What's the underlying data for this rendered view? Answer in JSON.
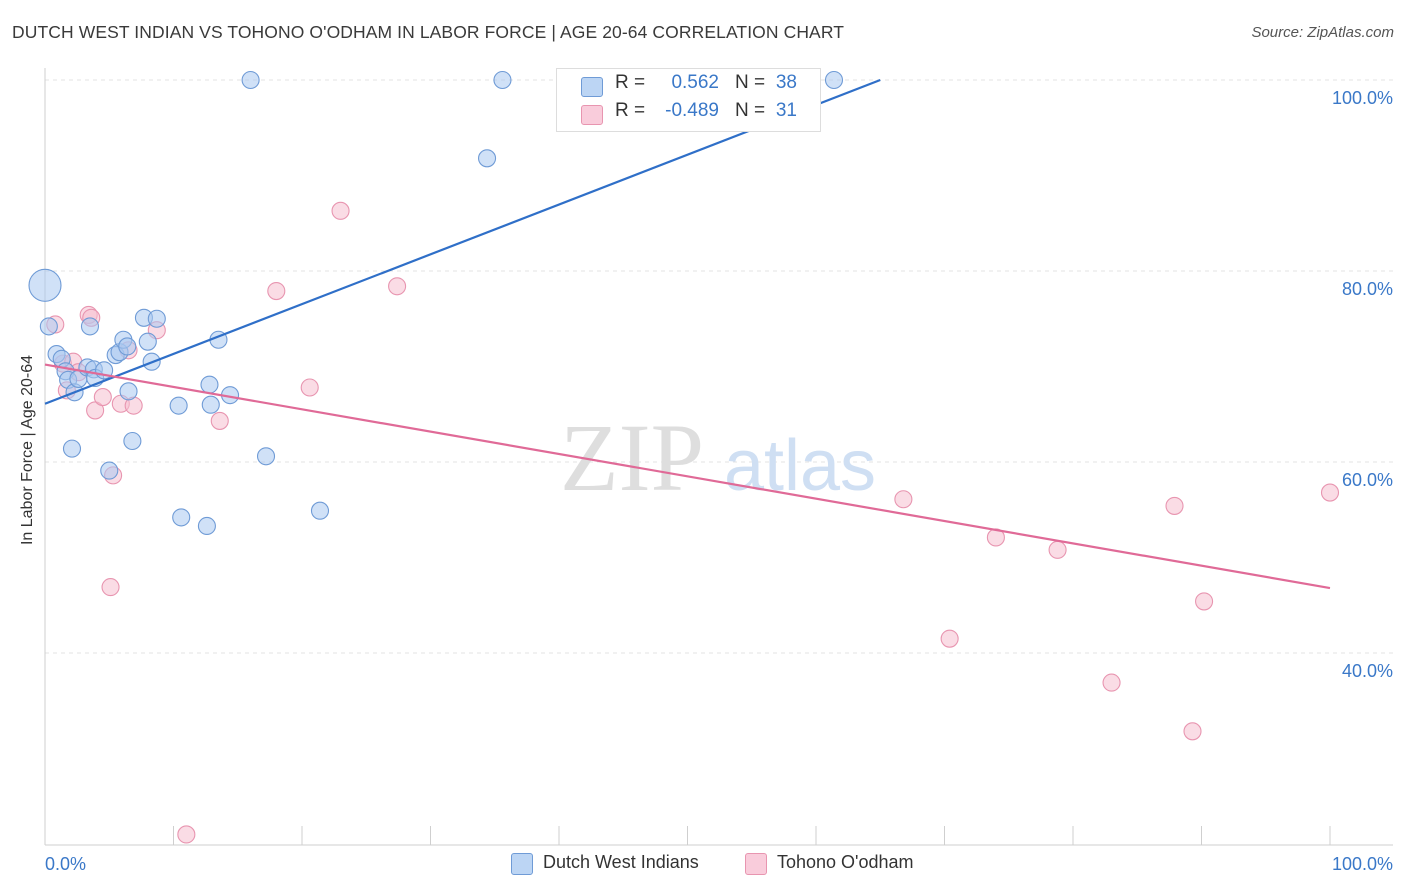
{
  "header": {
    "title": "DUTCH WEST INDIAN VS TOHONO O'ODHAM IN LABOR FORCE | AGE 20-64 CORRELATION CHART",
    "source": "Source: ZipAtlas.com"
  },
  "watermark": {
    "zip": "ZIP",
    "atlas": "atlas"
  },
  "legend_top": {
    "rows": [
      {
        "r_label": "R =",
        "r_value": "0.562",
        "n_label": "N =",
        "n_value": "38"
      },
      {
        "r_label": "R =",
        "r_value": "-0.489",
        "n_label": "N =",
        "n_value": "31"
      }
    ]
  },
  "colors": {
    "blue_fill": "#a9c8f0",
    "blue_stroke": "#6f9bd6",
    "blue_line": "#2f6fc8",
    "pink_fill": "#f6bfd0",
    "pink_stroke": "#e895b0",
    "pink_line": "#e06a97",
    "tick_text": "#3a78c8",
    "grid": "#e3e3e3"
  },
  "chart_data": {
    "type": "scatter",
    "title": "DUTCH WEST INDIAN VS TOHONO O'ODHAM IN LABOR FORCE | AGE 20-64 CORRELATION CHART",
    "xlabel": "",
    "ylabel": "In Labor Force | Age 20-64",
    "xlim": [
      0,
      100
    ],
    "ylim": [
      20,
      104
    ],
    "x_tick_labels": [
      "0.0%",
      "100.0%"
    ],
    "y_ticks": [
      40,
      60,
      80,
      100
    ],
    "y_tick_labels": [
      "40.0%",
      "60.0%",
      "80.0%",
      "100.0%"
    ],
    "grid": true,
    "legend_position": "bottom",
    "series": [
      {
        "name": "Dutch West Indians",
        "color": "#a9c8f0",
        "r": "0.562",
        "n": "38",
        "points": [
          [
            0.0,
            78.5
          ],
          [
            0.3,
            74.2
          ],
          [
            0.9,
            71.3
          ],
          [
            1.3,
            70.8
          ],
          [
            1.6,
            69.5
          ],
          [
            1.8,
            68.6
          ],
          [
            2.3,
            67.3
          ],
          [
            2.6,
            68.7
          ],
          [
            3.3,
            69.9
          ],
          [
            3.5,
            74.2
          ],
          [
            3.8,
            69.7
          ],
          [
            3.9,
            68.8
          ],
          [
            4.6,
            69.6
          ],
          [
            5.0,
            59.1
          ],
          [
            5.5,
            71.2
          ],
          [
            5.8,
            71.5
          ],
          [
            6.1,
            72.8
          ],
          [
            6.4,
            72.1
          ],
          [
            6.5,
            67.4
          ],
          [
            6.8,
            62.2
          ],
          [
            7.7,
            75.1
          ],
          [
            8.0,
            72.6
          ],
          [
            8.3,
            70.5
          ],
          [
            8.7,
            75.0
          ],
          [
            10.4,
            65.9
          ],
          [
            10.6,
            54.2
          ],
          [
            12.6,
            53.3
          ],
          [
            12.8,
            68.1
          ],
          [
            12.9,
            66.0
          ],
          [
            13.5,
            72.8
          ],
          [
            14.4,
            67.0
          ],
          [
            2.1,
            61.4
          ],
          [
            16.0,
            100.0
          ],
          [
            17.2,
            60.6
          ],
          [
            21.4,
            54.9
          ],
          [
            34.4,
            91.8
          ],
          [
            35.6,
            100.0
          ],
          [
            61.4,
            100.0
          ]
        ]
      },
      {
        "name": "Tohono O'odham",
        "color": "#f6bfd0",
        "r": "-0.489",
        "n": "31",
        "points": [
          [
            0.8,
            74.4
          ],
          [
            1.4,
            70.3
          ],
          [
            1.7,
            67.5
          ],
          [
            2.2,
            70.5
          ],
          [
            2.6,
            69.4
          ],
          [
            3.4,
            75.4
          ],
          [
            3.6,
            75.1
          ],
          [
            3.9,
            65.4
          ],
          [
            4.5,
            66.8
          ],
          [
            5.3,
            58.6
          ],
          [
            5.1,
            46.9
          ],
          [
            5.9,
            66.1
          ],
          [
            6.5,
            71.7
          ],
          [
            6.9,
            65.9
          ],
          [
            8.7,
            73.8
          ],
          [
            11.0,
            21.0
          ],
          [
            13.6,
            64.3
          ],
          [
            18.0,
            77.9
          ],
          [
            20.6,
            67.8
          ],
          [
            23.0,
            86.3
          ],
          [
            27.4,
            78.4
          ],
          [
            47.0,
            100.0
          ],
          [
            66.8,
            56.1
          ],
          [
            74.0,
            52.1
          ],
          [
            70.4,
            41.5
          ],
          [
            78.8,
            50.8
          ],
          [
            83.0,
            36.9
          ],
          [
            87.9,
            55.4
          ],
          [
            89.3,
            31.8
          ],
          [
            90.2,
            45.4
          ],
          [
            100.0,
            56.8
          ]
        ]
      }
    ],
    "trend_lines": [
      {
        "series": "Dutch West Indians",
        "x": [
          0,
          65
        ],
        "y": [
          66.1,
          100.0
        ]
      },
      {
        "series": "Tohono O'odham",
        "x": [
          0,
          100
        ],
        "y": [
          70.2,
          46.8
        ]
      }
    ]
  },
  "legend_bottom": {
    "items": [
      {
        "label": "Dutch West Indians"
      },
      {
        "label": "Tohono O'odham"
      }
    ]
  }
}
